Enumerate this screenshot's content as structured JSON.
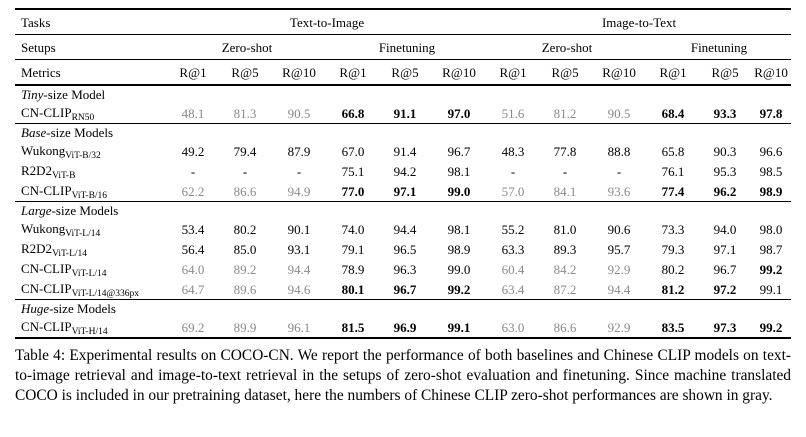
{
  "header": {
    "tasks_label": "Tasks",
    "task_t2i": "Text-to-Image",
    "task_i2t": "Image-to-Text",
    "setups_label": "Setups",
    "setups": [
      "Zero-shot",
      "Finetuning",
      "Zero-shot",
      "Finetuning"
    ],
    "metrics_label": "Metrics",
    "metrics": [
      "R@1",
      "R@5",
      "R@10",
      "R@1",
      "R@5",
      "R@10",
      "R@1",
      "R@5",
      "R@10",
      "R@1",
      "R@5",
      "R@10"
    ]
  },
  "groups": [
    {
      "title_italic": "Tiny",
      "title_rest": "-size Model",
      "rows": [
        {
          "model": "CN-CLIP",
          "sub": "RN50",
          "values": [
            "48.1",
            "81.3",
            "90.5",
            "66.8",
            "91.1",
            "97.0",
            "51.6",
            "81.2",
            "90.5",
            "68.4",
            "93.3",
            "97.8"
          ],
          "gray": [
            0,
            1,
            2,
            6,
            7,
            8
          ],
          "bold": [
            3,
            4,
            5,
            9,
            10,
            11
          ]
        }
      ]
    },
    {
      "title_italic": "Base",
      "title_rest": "-size Models",
      "rows": [
        {
          "model": "Wukong",
          "sub": "ViT-B/32",
          "values": [
            "49.2",
            "79.4",
            "87.9",
            "67.0",
            "91.4",
            "96.7",
            "48.3",
            "77.8",
            "88.8",
            "65.8",
            "90.3",
            "96.6"
          ],
          "gray": [],
          "bold": []
        },
        {
          "model": "R2D2",
          "sub": "ViT-B",
          "values": [
            "-",
            "-",
            "-",
            "75.1",
            "94.2",
            "98.1",
            "-",
            "-",
            "-",
            "76.1",
            "95.3",
            "98.5"
          ],
          "gray": [],
          "bold": []
        },
        {
          "model": "CN-CLIP",
          "sub": "ViT-B/16",
          "values": [
            "62.2",
            "86.6",
            "94.9",
            "77.0",
            "97.1",
            "99.0",
            "57.0",
            "84.1",
            "93.6",
            "77.4",
            "96.2",
            "98.9"
          ],
          "gray": [
            0,
            1,
            2,
            6,
            7,
            8
          ],
          "bold": [
            3,
            4,
            5,
            9,
            10,
            11
          ]
        }
      ]
    },
    {
      "title_italic": "Large",
      "title_rest": "-size Models",
      "rows": [
        {
          "model": "Wukong",
          "sub": "ViT-L/14",
          "values": [
            "53.4",
            "80.2",
            "90.1",
            "74.0",
            "94.4",
            "98.1",
            "55.2",
            "81.0",
            "90.6",
            "73.3",
            "94.0",
            "98.0"
          ],
          "gray": [],
          "bold": []
        },
        {
          "model": "R2D2",
          "sub": "ViT-L/14",
          "values": [
            "56.4",
            "85.0",
            "93.1",
            "79.1",
            "96.5",
            "98.9",
            "63.3",
            "89.3",
            "95.7",
            "79.3",
            "97.1",
            "98.7"
          ],
          "gray": [],
          "bold": []
        },
        {
          "model": "CN-CLIP",
          "sub": "ViT-L/14",
          "values": [
            "64.0",
            "89.2",
            "94.4",
            "78.9",
            "96.3",
            "99.0",
            "60.4",
            "84.2",
            "92.9",
            "80.2",
            "96.7",
            "99.2"
          ],
          "gray": [
            0,
            1,
            2,
            6,
            7,
            8
          ],
          "bold": [
            11
          ]
        },
        {
          "model": "CN-CLIP",
          "sub": "ViT-L/14@336px",
          "values": [
            "64.7",
            "89.6",
            "94.6",
            "80.1",
            "96.7",
            "99.2",
            "63.4",
            "87.2",
            "94.4",
            "81.2",
            "97.2",
            "99.1"
          ],
          "gray": [
            0,
            1,
            2,
            6,
            7,
            8
          ],
          "bold": [
            3,
            4,
            5,
            9,
            10
          ]
        }
      ]
    },
    {
      "title_italic": "Huge",
      "title_rest": "-size Models",
      "rows": [
        {
          "model": "CN-CLIP",
          "sub": "ViT-H/14",
          "values": [
            "69.2",
            "89.9",
            "96.1",
            "81.5",
            "96.9",
            "99.1",
            "63.0",
            "86.6",
            "92.9",
            "83.5",
            "97.3",
            "99.2"
          ],
          "gray": [
            0,
            1,
            2,
            6,
            7,
            8
          ],
          "bold": [
            3,
            4,
            5,
            9,
            10,
            11
          ]
        }
      ]
    }
  ],
  "caption": "Table 4: Experimental results on COCO-CN. We report the performance of both baselines and Chinese CLIP models on text-to-image retrieval and image-to-text retrieval in the setups of zero-shot evaluation and finetuning. Since machine translated COCO is included in our pretraining dataset, here the numbers of Chinese CLIP zero-shot performances are shown in gray."
}
